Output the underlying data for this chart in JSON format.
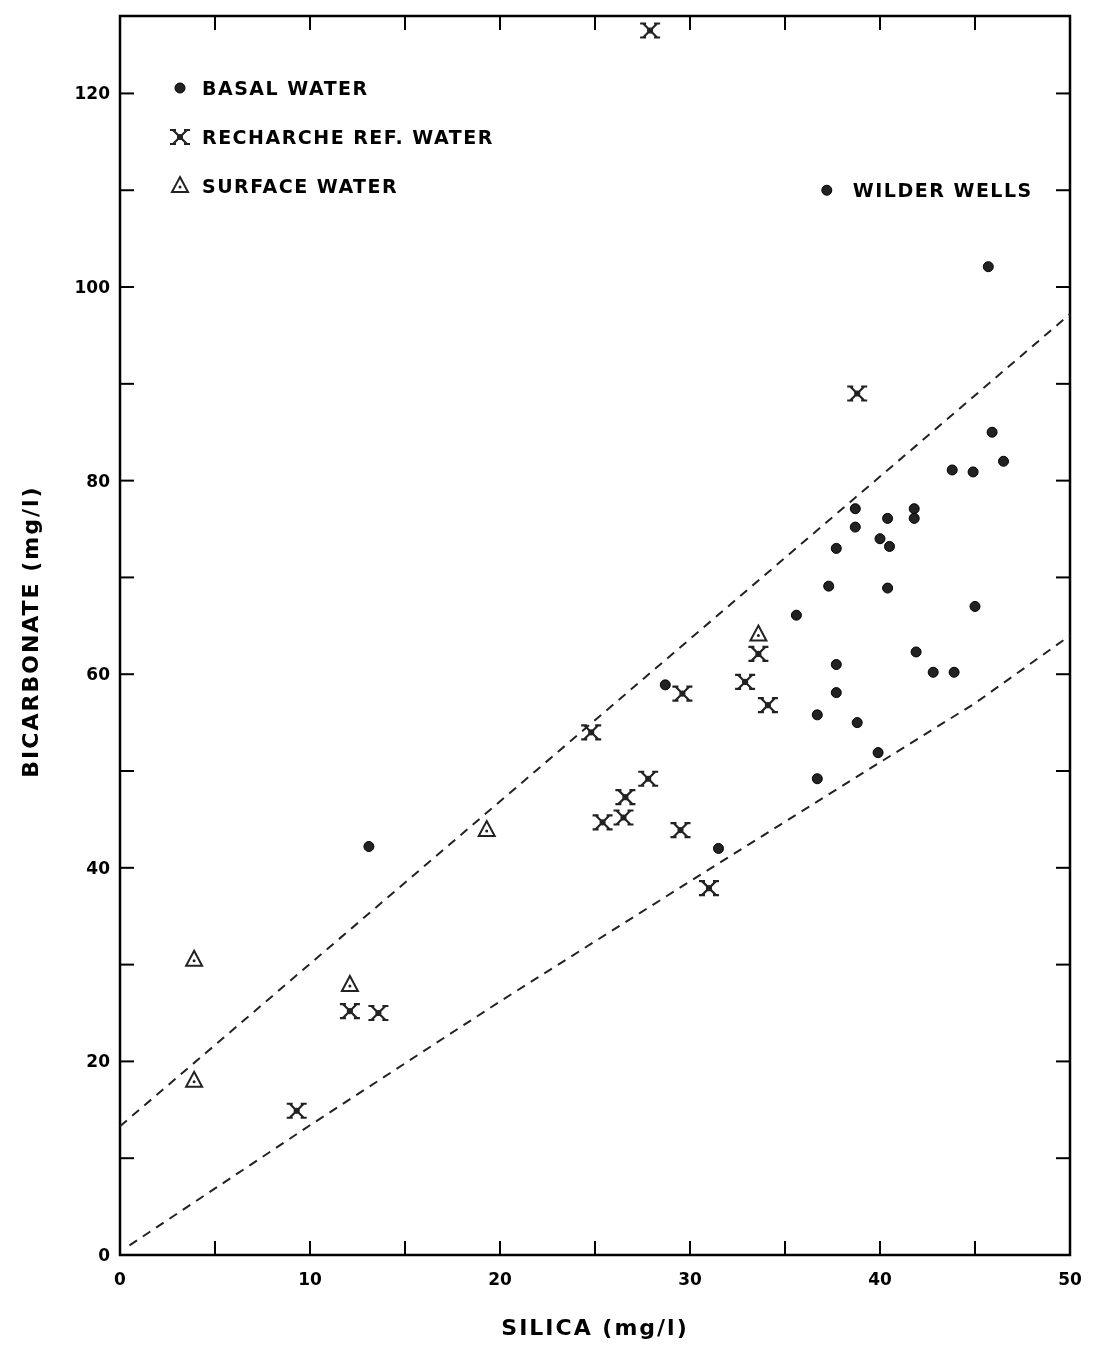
{
  "chart_data": {
    "type": "scatter",
    "xlabel": "SILICA (mg/l)",
    "ylabel": "BICARBONATE (mg/l)",
    "xlim": [
      0,
      50
    ],
    "ylim": [
      0,
      128
    ],
    "xticks": [
      0,
      {
        "value": 5,
        "label": null
      },
      10,
      {
        "value": 15,
        "label": null
      },
      20,
      {
        "value": 25,
        "label": null
      },
      30,
      {
        "value": 35,
        "label": null
      },
      40,
      {
        "value": 45,
        "label": null
      },
      50
    ],
    "yticks": [
      0,
      {
        "value": 10,
        "label": null
      },
      20,
      {
        "value": 30,
        "label": null
      },
      40,
      {
        "value": 50,
        "label": null
      },
      60,
      {
        "value": 70,
        "label": null
      },
      80,
      {
        "value": 90,
        "label": null
      },
      100,
      {
        "value": 110,
        "label": null
      },
      120
    ],
    "grid": false,
    "legend": "top left",
    "line_style": "dashed",
    "annotations": [
      {
        "text": "WILDER WELLS",
        "x": 37.2,
        "y": 110
      }
    ],
    "series": [
      {
        "name": "BASAL WATER",
        "type": "scatter",
        "marker": "circle",
        "color": "#222222",
        "x": [
          13.1,
          37.2,
          45.7,
          45.9,
          46.5,
          43.8,
          44.9,
          38.7,
          41.8,
          38.7,
          41.8,
          40.4,
          40.0,
          40.5,
          37.7,
          37.3,
          40.4,
          35.6,
          45.0,
          41.9,
          37.7,
          37.7,
          42.8,
          43.9,
          28.7,
          36.7,
          38.8,
          39.9,
          36.7,
          31.5
        ],
        "values": [
          42.2,
          110,
          102.1,
          85,
          82,
          81.1,
          80.9,
          77.1,
          77.1,
          75.2,
          76.1,
          76.1,
          74,
          73.2,
          73,
          69.1,
          68.9,
          66.1,
          67,
          62.3,
          61,
          58.1,
          60.2,
          60.2,
          58.9,
          55.8,
          55,
          51.9,
          49.2,
          42
        ]
      },
      {
        "name": "RECHARCHE REF. WATER",
        "type": "scatter",
        "marker": "cross",
        "color": "#222222",
        "x": [
          27.9,
          38.8,
          33.6,
          32.9,
          34.1,
          29.6,
          24.8,
          27.8,
          26.6,
          25.4,
          26.5,
          29.5,
          31.0,
          12.1,
          13.6,
          9.3
        ],
        "values": [
          126.5,
          89,
          62.1,
          59.2,
          56.8,
          58,
          54,
          49.2,
          47.3,
          44.7,
          45.2,
          43.9,
          37.9,
          25.2,
          25,
          14.9
        ]
      },
      {
        "name": "SURFACE WATER",
        "type": "scatter",
        "marker": "triangle",
        "color": "#222222",
        "x": [
          3.9,
          3.9,
          12.1,
          19.3,
          33.6
        ],
        "values": [
          30.5,
          18,
          27.9,
          43.9,
          64.1
        ]
      },
      {
        "type": "line",
        "color": "#222222",
        "x": [
          0,
          50
        ],
        "values": [
          13.3,
          97.2
        ]
      },
      {
        "type": "line",
        "color": "#222222",
        "x": [
          0.5,
          10,
          20,
          30,
          40,
          45,
          50
        ],
        "values": [
          1,
          13.4,
          26.2,
          38.6,
          50.9,
          57,
          64
        ]
      }
    ]
  }
}
